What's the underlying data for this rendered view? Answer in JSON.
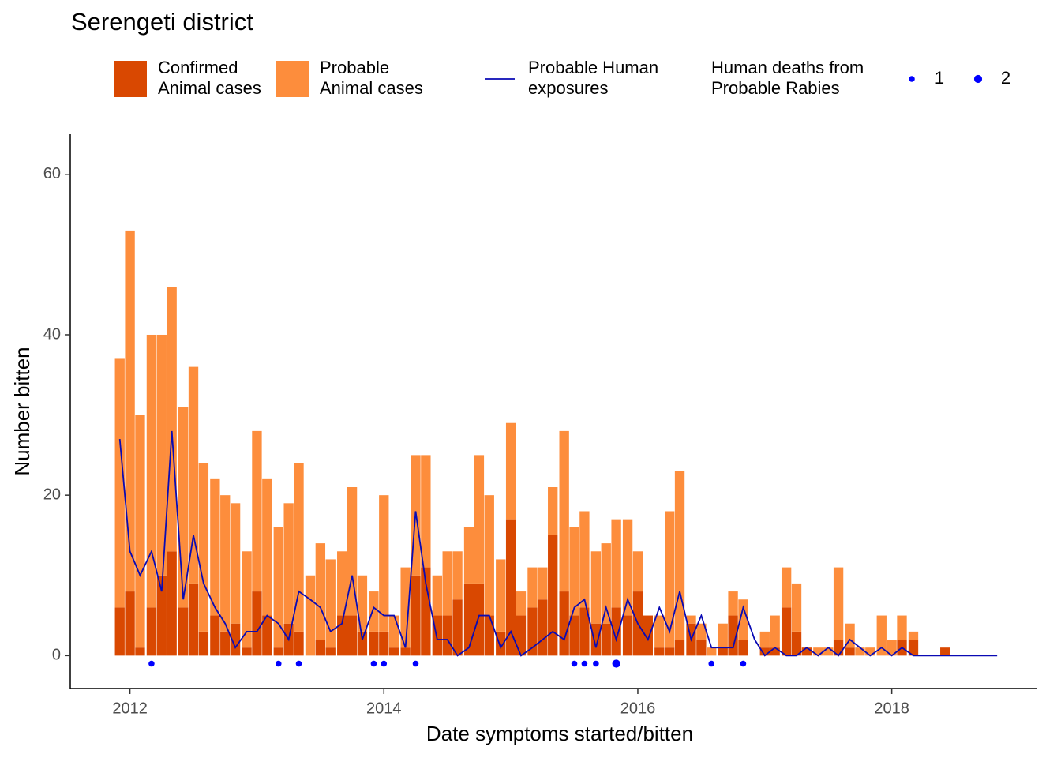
{
  "chart_data": {
    "type": "bar-line",
    "title": "Serengeti district",
    "x_label": "Date symptoms started/bitten",
    "y_label": "Number bitten",
    "x": [
      2011.92,
      2012.0,
      2012.08,
      2012.17,
      2012.25,
      2012.33,
      2012.42,
      2012.5,
      2012.58,
      2012.67,
      2012.75,
      2012.83,
      2012.92,
      2013.0,
      2013.08,
      2013.17,
      2013.25,
      2013.33,
      2013.42,
      2013.5,
      2013.58,
      2013.67,
      2013.75,
      2013.83,
      2013.92,
      2014.0,
      2014.08,
      2014.17,
      2014.25,
      2014.33,
      2014.42,
      2014.5,
      2014.58,
      2014.67,
      2014.75,
      2014.83,
      2014.92,
      2015.0,
      2015.08,
      2015.17,
      2015.25,
      2015.33,
      2015.42,
      2015.5,
      2015.58,
      2015.67,
      2015.75,
      2015.83,
      2015.92,
      2016.0,
      2016.08,
      2016.17,
      2016.25,
      2016.33,
      2016.42,
      2016.5,
      2016.58,
      2016.67,
      2016.75,
      2016.83,
      2016.92,
      2017.0,
      2017.08,
      2017.17,
      2017.25,
      2017.33,
      2017.42,
      2017.5,
      2017.58,
      2017.67,
      2017.75,
      2017.83,
      2017.92,
      2018.0,
      2018.08,
      2018.17,
      2018.25,
      2018.33,
      2018.42,
      2018.5,
      2018.58,
      2018.67,
      2018.75,
      2018.83
    ],
    "series": [
      {
        "name": "Confirmed\nAnimal cases",
        "color": "#d94801",
        "values": [
          6,
          8,
          1,
          6,
          10,
          13,
          6,
          9,
          3,
          5,
          3,
          4,
          1,
          8,
          5,
          1,
          4,
          3,
          0,
          2,
          1,
          5,
          5,
          3,
          3,
          3,
          1,
          1,
          10,
          11,
          5,
          5,
          7,
          9,
          9,
          5,
          3,
          17,
          5,
          6,
          7,
          15,
          8,
          5,
          6,
          4,
          4,
          6,
          5,
          8,
          5,
          1,
          1,
          2,
          4,
          2,
          0,
          1,
          5,
          2,
          0,
          1,
          1,
          6,
          3,
          1,
          0,
          0,
          2,
          1,
          0,
          0,
          0,
          0,
          2,
          2,
          0,
          0,
          1,
          0,
          null,
          null,
          null,
          null
        ]
      },
      {
        "name": "Probable\nAnimal cases",
        "color": "#fd8d3c",
        "values": [
          31,
          45,
          29,
          34,
          30,
          33,
          25,
          27,
          21,
          17,
          17,
          15,
          12,
          20,
          17,
          15,
          15,
          21,
          10,
          12,
          11,
          8,
          16,
          7,
          5,
          17,
          4,
          10,
          15,
          14,
          5,
          8,
          6,
          7,
          16,
          15,
          9,
          12,
          3,
          5,
          4,
          6,
          20,
          11,
          12,
          9,
          10,
          11,
          12,
          5,
          0,
          4,
          17,
          21,
          1,
          2,
          1,
          3,
          3,
          5,
          0,
          2,
          4,
          5,
          6,
          0,
          1,
          1,
          9,
          3,
          1,
          1,
          5,
          2,
          3,
          1,
          0,
          0,
          0,
          0,
          null,
          null,
          null,
          null
        ]
      },
      {
        "name": "Probable Human\nexposures",
        "color": "#0a0ab4",
        "kind": "line",
        "values": [
          27,
          13,
          10,
          13,
          8,
          28,
          7,
          15,
          9,
          6,
          4,
          1,
          3,
          3,
          5,
          4,
          2,
          8,
          7,
          6,
          3,
          4,
          10,
          2,
          6,
          5,
          5,
          1,
          18,
          9,
          2,
          2,
          0,
          1,
          5,
          5,
          1,
          3,
          0,
          1,
          2,
          3,
          2,
          6,
          7,
          1,
          6,
          2,
          7,
          4,
          2,
          6,
          3,
          8,
          2,
          5,
          1,
          1,
          1,
          6,
          2,
          0,
          1,
          0,
          0,
          1,
          0,
          1,
          0,
          2,
          1,
          0,
          1,
          0,
          1,
          0,
          0,
          0,
          0,
          0,
          0,
          0,
          0,
          0
        ]
      }
    ],
    "deaths": {
      "name": "Human deaths from\nProbable Rabies",
      "color": "#0000ff",
      "x": [
        2012.17,
        2013.17,
        2013.33,
        2013.92,
        2014.0,
        2014.25,
        2015.5,
        2015.58,
        2015.67,
        2015.83,
        2016.58,
        2016.83
      ],
      "y": [
        -1,
        -1,
        -1,
        -1,
        -1,
        -1,
        -1,
        -1,
        -1,
        -1,
        -1,
        -1
      ],
      "sizes": [
        1,
        1,
        1,
        1,
        1,
        1,
        1,
        1,
        1,
        2,
        1,
        1
      ],
      "size_legend": [
        1,
        2
      ]
    },
    "xlim": [
      2011.53,
      2019.14
    ],
    "xticks": [
      2012,
      2014,
      2016,
      2018
    ],
    "ylim": [
      -4.1,
      65
    ],
    "yticks": [
      0,
      20,
      40,
      60
    ]
  }
}
